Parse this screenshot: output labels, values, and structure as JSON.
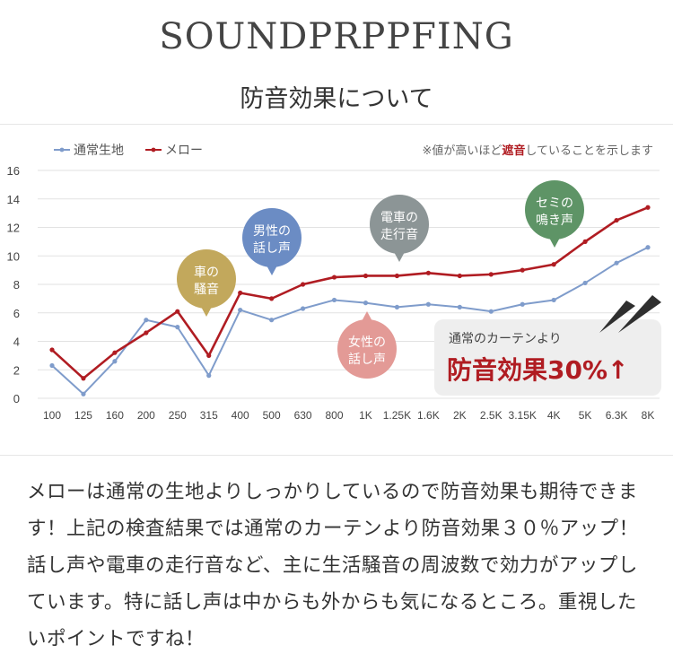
{
  "page": {
    "brand_title": "SOUNDPRPPFING",
    "subtitle": "防音効果について",
    "body_text": "メローは通常の生地よりしっかりしているので防音効果も期待できます！上記の検査結果では通常のカーテンより防音効果３０％アップ！話し声や電車の走行音など、主に生活騒音の周波数で効力がアップしています。特に話し声は中からも外からも気になるところ。重視したいポイントですね！"
  },
  "chart_data": {
    "type": "line",
    "x": [
      "100",
      "125",
      "160",
      "200",
      "250",
      "315",
      "400",
      "500",
      "630",
      "800",
      "1K",
      "1.25K",
      "1.6K",
      "2K",
      "2.5K",
      "3.15K",
      "4K",
      "5K",
      "6.3K",
      "8K"
    ],
    "ylim": [
      0,
      16
    ],
    "yticks": [
      "0",
      "2",
      "4",
      "6",
      "8",
      "10",
      "12",
      "14",
      "16"
    ],
    "grid": true,
    "legend_position": "top-left",
    "series": [
      {
        "name": "通常生地",
        "color": "#7f9ccb",
        "values": [
          2.3,
          0.3,
          2.6,
          5.5,
          5.0,
          1.6,
          6.2,
          5.5,
          6.3,
          6.9,
          6.7,
          6.4,
          6.6,
          6.4,
          6.1,
          6.6,
          6.9,
          8.1,
          9.5,
          10.6
        ]
      },
      {
        "name": "メロー",
        "color": "#b01c22",
        "values": [
          3.4,
          1.4,
          3.2,
          4.6,
          6.1,
          3.0,
          7.4,
          7.0,
          8.0,
          8.5,
          8.6,
          8.6,
          8.8,
          8.6,
          8.7,
          9.0,
          9.4,
          11.0,
          12.5,
          13.4
        ]
      }
    ],
    "note": {
      "before": "※値が高いほど",
      "highlight": "遮音",
      "after": "していることを示します",
      "highlight_color": "#b01c22"
    },
    "bubbles": [
      {
        "line1": "車の",
        "line2": "騒音",
        "color": "#c2a85c",
        "anchor_index": 5
      },
      {
        "line1": "男性の",
        "line2": "話し声",
        "color": "#6b8cc4",
        "anchor_index": 7
      },
      {
        "line1": "電車の",
        "line2": "走行音",
        "color": "#8c9596",
        "anchor_index": 11
      },
      {
        "line1": "女性の",
        "line2": "話し声",
        "color": "#e39a96",
        "anchor_index": 8
      },
      {
        "line1": "セミの",
        "line2": "鳴き声",
        "color": "#5e9466",
        "anchor_index": 16
      }
    ],
    "callout": {
      "small": "通常のカーテンより",
      "big": "防音効果30%↑",
      "big_color": "#b01c22",
      "bg": "#eeeeee"
    }
  }
}
